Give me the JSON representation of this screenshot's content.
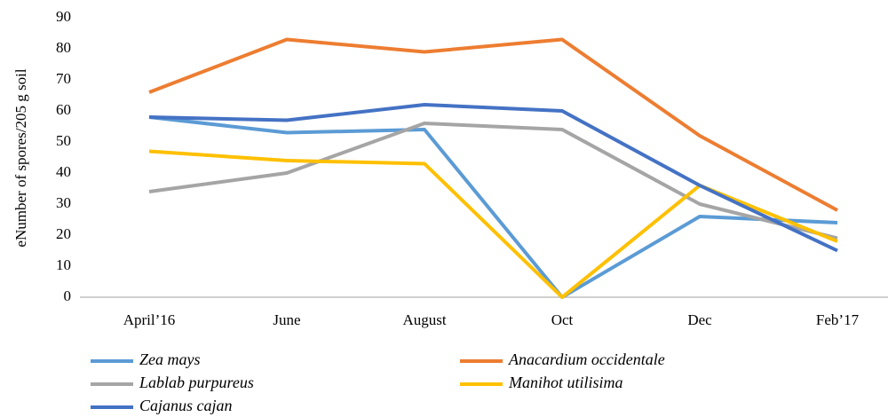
{
  "chart_data": {
    "type": "line",
    "y_label": "eNumber of spores/205 g soil",
    "categories": [
      "April’16",
      "June",
      "August",
      "Oct",
      "Dec",
      "Feb’17"
    ],
    "series": [
      {
        "name": "Zea mays",
        "color": "#5b9bd5",
        "values": [
          58,
          53,
          54,
          0,
          26,
          24
        ]
      },
      {
        "name": "Anacardium occidentale",
        "color": "#ed7d31",
        "values": [
          66,
          83,
          79,
          83,
          52,
          28
        ]
      },
      {
        "name": "Lablab purpureus",
        "color": "#a5a5a5",
        "values": [
          34,
          40,
          56,
          54,
          30,
          19
        ]
      },
      {
        "name": "Manihot utilisima",
        "color": "#ffc000",
        "values": [
          47,
          44,
          43,
          0,
          36,
          18
        ]
      },
      {
        "name": "Cajanus cajan",
        "color": "#4472c4",
        "values": [
          58,
          57,
          62,
          60,
          36,
          15
        ]
      }
    ],
    "ylim": [
      0,
      90
    ],
    "yticks": [
      0,
      10,
      20,
      30,
      40,
      50,
      60,
      70,
      80,
      90
    ]
  }
}
